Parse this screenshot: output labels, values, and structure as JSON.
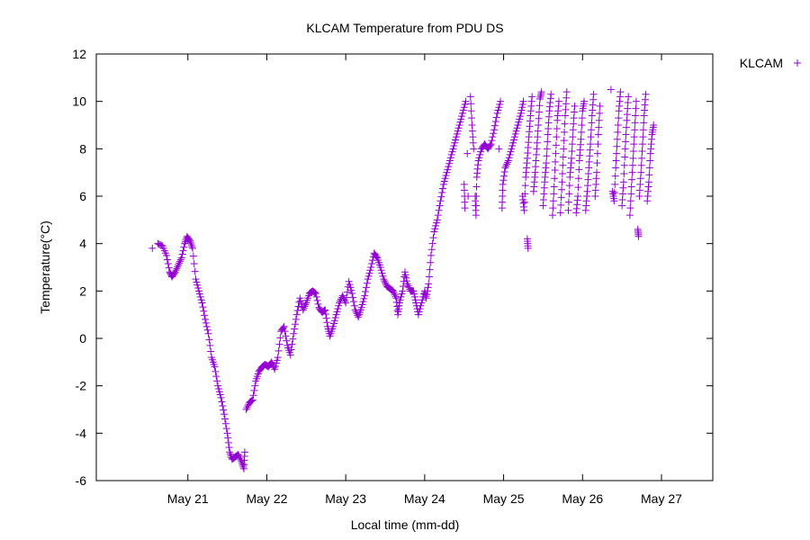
{
  "chart_data": {
    "type": "scatter",
    "title": "KLCAM Temperature from PDU    DS",
    "xlabel": "Local time (mm-dd)",
    "ylabel": "Temperature(°C)",
    "ylim": [
      -6,
      12
    ],
    "yticks": [
      -6,
      -4,
      -2,
      0,
      2,
      4,
      6,
      8,
      10,
      12
    ],
    "xticks": [
      {
        "label": "May 21",
        "day": 21
      },
      {
        "label": "May 22",
        "day": 22
      },
      {
        "label": "May 23",
        "day": 23
      },
      {
        "label": "May 24",
        "day": 24
      },
      {
        "label": "May 25",
        "day": 25
      },
      {
        "label": "May 26",
        "day": 26
      },
      {
        "label": "May 27",
        "day": 27
      }
    ],
    "xlim_day": [
      19.84,
      27.65
    ],
    "grid": false,
    "legend_position": "top-right outside",
    "marker": "+",
    "series": [
      {
        "name": "KLCAM",
        "color": "#9400d3",
        "points": [
          [
            20.55,
            3.8
          ],
          [
            20.62,
            4.0
          ],
          [
            20.68,
            3.9
          ],
          [
            20.73,
            3.5
          ],
          [
            20.77,
            2.8
          ],
          [
            20.8,
            2.6
          ],
          [
            20.84,
            2.8
          ],
          [
            20.88,
            3.1
          ],
          [
            20.92,
            3.4
          ],
          [
            20.96,
            4.0
          ],
          [
            20.99,
            4.3
          ],
          [
            21.03,
            4.1
          ],
          [
            21.06,
            3.8
          ],
          [
            21.1,
            2.5
          ],
          [
            21.14,
            2.0
          ],
          [
            21.18,
            1.5
          ],
          [
            21.22,
            0.8
          ],
          [
            21.26,
            0.2
          ],
          [
            21.3,
            -0.8
          ],
          [
            21.34,
            -1.2
          ],
          [
            21.38,
            -2.0
          ],
          [
            21.42,
            -2.5
          ],
          [
            21.46,
            -3.2
          ],
          [
            21.5,
            -4.0
          ],
          [
            21.53,
            -4.8
          ],
          [
            21.56,
            -5.1
          ],
          [
            21.6,
            -5.0
          ],
          [
            21.64,
            -4.9
          ],
          [
            21.68,
            -5.2
          ],
          [
            21.71,
            -5.5
          ],
          [
            21.72,
            -4.8
          ],
          [
            21.74,
            -3.0
          ],
          [
            21.78,
            -2.7
          ],
          [
            21.82,
            -2.6
          ],
          [
            21.86,
            -1.8
          ],
          [
            21.9,
            -1.4
          ],
          [
            21.94,
            -1.2
          ],
          [
            21.98,
            -1.1
          ],
          [
            22.02,
            -1.2
          ],
          [
            22.06,
            -1.0
          ],
          [
            22.1,
            -1.3
          ],
          [
            22.14,
            -0.8
          ],
          [
            22.18,
            0.3
          ],
          [
            22.22,
            0.5
          ],
          [
            22.26,
            -0.3
          ],
          [
            22.3,
            -0.7
          ],
          [
            22.34,
            0.2
          ],
          [
            22.38,
            1.0
          ],
          [
            22.42,
            1.7
          ],
          [
            22.46,
            1.2
          ],
          [
            22.5,
            1.5
          ],
          [
            22.54,
            1.9
          ],
          [
            22.58,
            2.0
          ],
          [
            22.62,
            1.9
          ],
          [
            22.66,
            1.3
          ],
          [
            22.7,
            1.1
          ],
          [
            22.74,
            1.2
          ],
          [
            22.77,
            0.5
          ],
          [
            22.8,
            0.1
          ],
          [
            22.84,
            0.5
          ],
          [
            22.88,
            1.0
          ],
          [
            22.92,
            1.5
          ],
          [
            22.96,
            1.8
          ],
          [
            23.0,
            1.5
          ],
          [
            23.04,
            2.4
          ],
          [
            23.08,
            1.9
          ],
          [
            23.12,
            1.2
          ],
          [
            23.16,
            0.9
          ],
          [
            23.2,
            1.3
          ],
          [
            23.24,
            1.8
          ],
          [
            23.28,
            2.5
          ],
          [
            23.32,
            3.0
          ],
          [
            23.36,
            3.6
          ],
          [
            23.4,
            3.4
          ],
          [
            23.44,
            3.0
          ],
          [
            23.48,
            2.5
          ],
          [
            23.52,
            2.2
          ],
          [
            23.56,
            2.1
          ],
          [
            23.6,
            2.0
          ],
          [
            23.64,
            1.7
          ],
          [
            23.66,
            1.0
          ],
          [
            23.68,
            1.5
          ],
          [
            23.72,
            2.0
          ],
          [
            23.75,
            2.8
          ],
          [
            23.78,
            2.3
          ],
          [
            23.82,
            2.0
          ],
          [
            23.86,
            2.0
          ],
          [
            23.89,
            1.5
          ],
          [
            23.92,
            1.0
          ],
          [
            23.96,
            1.5
          ],
          [
            24.0,
            2.0
          ],
          [
            24.02,
            1.7
          ],
          [
            24.05,
            2.3
          ],
          [
            24.08,
            3.5
          ],
          [
            24.12,
            4.5
          ],
          [
            24.16,
            5.0
          ],
          [
            24.2,
            5.8
          ],
          [
            24.24,
            6.5
          ],
          [
            24.28,
            7.0
          ],
          [
            24.32,
            7.5
          ],
          [
            24.36,
            8.0
          ],
          [
            24.4,
            8.5
          ],
          [
            24.44,
            9.0
          ],
          [
            24.48,
            9.5
          ],
          [
            24.52,
            10.0
          ],
          [
            24.5,
            6.5
          ],
          [
            24.51,
            5.5
          ],
          [
            24.54,
            7.8
          ],
          [
            24.55,
            6.0
          ],
          [
            24.58,
            10.2
          ],
          [
            24.6,
            9.0
          ],
          [
            24.62,
            8.0
          ],
          [
            24.64,
            6.0
          ],
          [
            24.65,
            5.2
          ],
          [
            24.66,
            6.8
          ],
          [
            24.68,
            7.5
          ],
          [
            24.72,
            8.0
          ],
          [
            24.76,
            8.2
          ],
          [
            24.8,
            8.0
          ],
          [
            24.84,
            8.2
          ],
          [
            24.88,
            8.8
          ],
          [
            24.92,
            9.5
          ],
          [
            24.96,
            10.0
          ],
          [
            24.94,
            8.0
          ],
          [
            24.98,
            5.5
          ],
          [
            24.99,
            6.5
          ],
          [
            25.02,
            7.2
          ],
          [
            25.06,
            7.5
          ],
          [
            25.1,
            8.0
          ],
          [
            25.14,
            8.5
          ],
          [
            25.18,
            9.0
          ],
          [
            25.22,
            9.5
          ],
          [
            25.25,
            10.0
          ],
          [
            25.24,
            6.0
          ],
          [
            25.26,
            5.4
          ],
          [
            25.28,
            6.8
          ],
          [
            25.3,
            7.6
          ],
          [
            25.32,
            8.5
          ],
          [
            25.34,
            9.4
          ],
          [
            25.36,
            10.2
          ],
          [
            25.3,
            4.2
          ],
          [
            25.31,
            3.8
          ],
          [
            25.38,
            6.2
          ],
          [
            25.4,
            7.0
          ],
          [
            25.42,
            8.0
          ],
          [
            25.44,
            9.0
          ],
          [
            25.46,
            10.1
          ],
          [
            25.48,
            10.4
          ],
          [
            25.5,
            5.6
          ],
          [
            25.52,
            6.6
          ],
          [
            25.54,
            7.4
          ],
          [
            25.56,
            8.6
          ],
          [
            25.58,
            9.6
          ],
          [
            25.6,
            10.3
          ],
          [
            25.62,
            5.2
          ],
          [
            25.64,
            6.4
          ],
          [
            25.66,
            7.8
          ],
          [
            25.68,
            9.2
          ],
          [
            25.7,
            10.0
          ],
          [
            25.72,
            5.3
          ],
          [
            25.74,
            6.6
          ],
          [
            25.76,
            8.0
          ],
          [
            25.78,
            9.4
          ],
          [
            25.8,
            10.4
          ],
          [
            25.82,
            5.4
          ],
          [
            25.84,
            6.8
          ],
          [
            25.86,
            7.6
          ],
          [
            25.88,
            8.8
          ],
          [
            25.9,
            9.8
          ],
          [
            25.92,
            5.3
          ],
          [
            25.94,
            6.0
          ],
          [
            25.96,
            7.5
          ],
          [
            25.98,
            8.4
          ],
          [
            26.0,
            9.6
          ],
          [
            26.02,
            10.0
          ],
          [
            26.04,
            5.4
          ],
          [
            26.06,
            6.2
          ],
          [
            26.08,
            7.2
          ],
          [
            26.1,
            8.2
          ],
          [
            26.12,
            9.4
          ],
          [
            26.14,
            10.3
          ],
          [
            26.16,
            6.0
          ],
          [
            26.18,
            7.0
          ],
          [
            26.2,
            8.6
          ],
          [
            26.22,
            9.8
          ],
          [
            26.36,
            10.5
          ],
          [
            26.38,
            6.2
          ],
          [
            26.4,
            5.8
          ],
          [
            26.42,
            7.2
          ],
          [
            26.44,
            8.4
          ],
          [
            26.46,
            9.6
          ],
          [
            26.48,
            10.4
          ],
          [
            26.5,
            5.6
          ],
          [
            26.52,
            6.6
          ],
          [
            26.54,
            8.0
          ],
          [
            26.56,
            9.2
          ],
          [
            26.58,
            10.2
          ],
          [
            26.6,
            5.2
          ],
          [
            26.62,
            6.4
          ],
          [
            26.64,
            7.6
          ],
          [
            26.66,
            8.8
          ],
          [
            26.68,
            10.0
          ],
          [
            26.7,
            4.6
          ],
          [
            26.71,
            4.3
          ],
          [
            26.72,
            6.0
          ],
          [
            26.74,
            7.0
          ],
          [
            26.76,
            8.2
          ],
          [
            26.78,
            9.4
          ],
          [
            26.8,
            10.3
          ],
          [
            26.82,
            5.8
          ],
          [
            26.84,
            6.6
          ],
          [
            26.86,
            7.8
          ],
          [
            26.88,
            8.6
          ],
          [
            26.9,
            9.0
          ]
        ]
      }
    ]
  }
}
